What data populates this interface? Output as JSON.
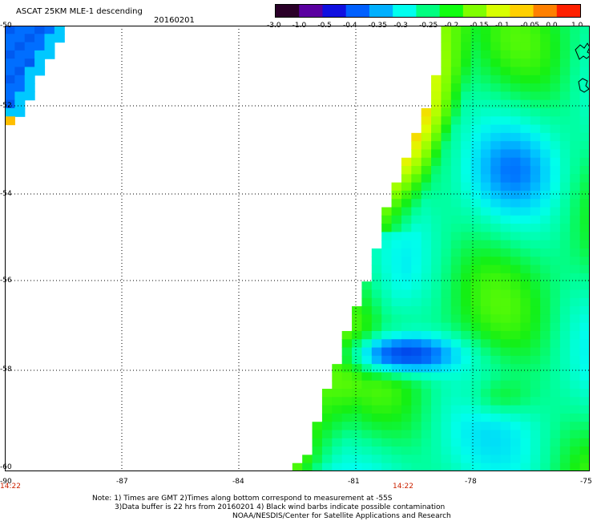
{
  "header": {
    "title": "ASCAT 25KM MLE-1 descending",
    "date": "20160201"
  },
  "colorbar": {
    "labels": [
      "-3.0",
      "-1.0",
      "-0.5",
      "-0.4",
      "-0.35",
      "-0.3",
      "-0.25",
      "-0.2",
      "-0.15",
      "-0.1",
      "-0.05",
      "0.0",
      "1.0"
    ],
    "colors": [
      "#2a0028",
      "#5a00a0",
      "#1010e0",
      "#0060ff",
      "#00b0ff",
      "#00ffee",
      "#00ff80",
      "#10ff10",
      "#80ff00",
      "#d8ff00",
      "#ffd000",
      "#ff8000",
      "#ff2000"
    ]
  },
  "map": {
    "lat_labels": [
      "-50",
      "-52",
      "-54",
      "-56",
      "-58",
      "-60"
    ],
    "lon_labels": [
      "-90",
      "-87",
      "-84",
      "-81",
      "-78",
      "-75"
    ],
    "times": [
      "14:22",
      "14:22"
    ],
    "lat_range": [
      -60,
      -50
    ],
    "lon_range": [
      -90,
      -75
    ]
  },
  "notes": {
    "line1": "Note: 1) Times are GMT 2)Times along bottom correspond to measurement at -55S",
    "line2": "3)Data buffer is 22 hrs from 20160201 4) Black wind barbs indicate possible contamination",
    "line3": "NOAA/NESDIS/Center for Satellite Applications and Research"
  }
}
